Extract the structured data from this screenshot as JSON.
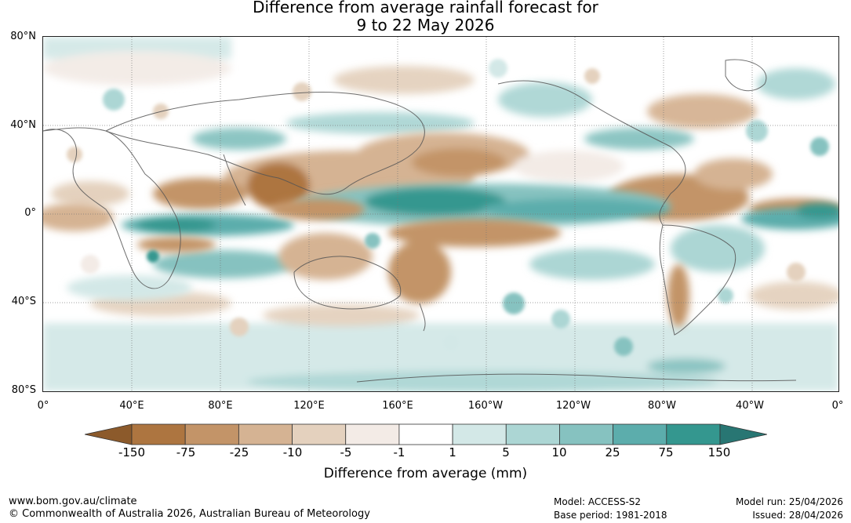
{
  "title": {
    "line1": "Difference from average rainfall forecast for",
    "line2": "9 to 22 May 2026"
  },
  "map": {
    "lat_labels": [
      "80°N",
      "40°N",
      "0°",
      "40°S",
      "80°S"
    ],
    "lon_labels": [
      "0°",
      "40°E",
      "80°E",
      "120°E",
      "160°E",
      "160°W",
      "120°W",
      "80°W",
      "40°W",
      "0°"
    ]
  },
  "legend": {
    "ticks": [
      "-150",
      "-75",
      "-25",
      "-10",
      "-5",
      "-1",
      "1",
      "5",
      "10",
      "25",
      "75",
      "150"
    ],
    "label": "Difference from average (mm)",
    "colors": [
      "#8c5a2b",
      "#ad7540",
      "#c39468",
      "#d5b393",
      "#e4d1be",
      "#f3ebe6",
      "#ffffff",
      "#d3e8e7",
      "#acd6d4",
      "#86c2c0",
      "#5cadac",
      "#34978f",
      "#287673"
    ]
  },
  "footer": {
    "url": "www.bom.gov.au/climate",
    "copyright": "© Commonwealth of Australia 2026, Australian Bureau of Meteorology",
    "model": "Model: ACCESS-S2",
    "base_period": "Base period: 1981-2018",
    "model_run": "Model run: 25/04/2026",
    "issued": "Issued: 28/04/2026"
  }
}
